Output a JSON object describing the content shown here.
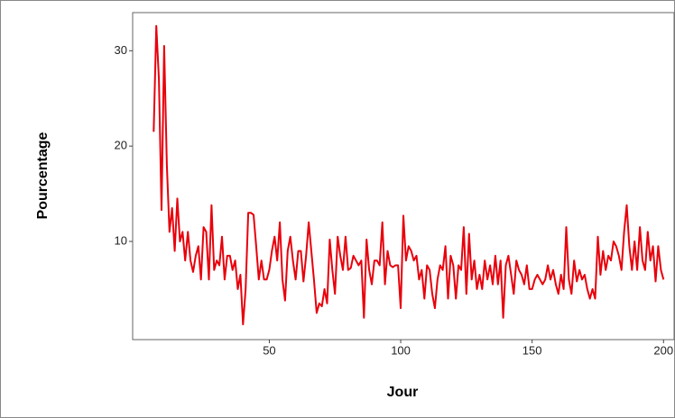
{
  "chart_data": {
    "type": "line",
    "x_label": "Jour",
    "y_label": "Pourcentage",
    "xlim": [
      -2,
      203
    ],
    "ylim": [
      -0.3,
      34
    ],
    "xticks": [
      50,
      100,
      150,
      200
    ],
    "yticks": [
      10,
      20,
      30
    ],
    "x": [
      6,
      7,
      8,
      9,
      10,
      11,
      12,
      13,
      14,
      15,
      16,
      17,
      18,
      19,
      20,
      21,
      22,
      23,
      24,
      25,
      26,
      27,
      28,
      29,
      30,
      31,
      32,
      33,
      34,
      35,
      36,
      37,
      38,
      39,
      40,
      41,
      42,
      43,
      44,
      45,
      46,
      47,
      48,
      49,
      50,
      51,
      52,
      53,
      54,
      55,
      56,
      57,
      58,
      59,
      60,
      61,
      62,
      63,
      64,
      65,
      66,
      67,
      68,
      69,
      70,
      71,
      72,
      73,
      74,
      75,
      76,
      77,
      78,
      79,
      80,
      81,
      82,
      83,
      84,
      85,
      86,
      87,
      88,
      89,
      90,
      91,
      92,
      93,
      94,
      95,
      96,
      97,
      98,
      99,
      100,
      101,
      102,
      103,
      104,
      105,
      106,
      107,
      108,
      109,
      110,
      111,
      112,
      113,
      114,
      115,
      116,
      117,
      118,
      119,
      120,
      121,
      122,
      123,
      124,
      125,
      126,
      127,
      128,
      129,
      130,
      131,
      132,
      133,
      134,
      135,
      136,
      137,
      138,
      139,
      140,
      141,
      142,
      143,
      144,
      145,
      146,
      147,
      148,
      149,
      150,
      151,
      152,
      153,
      154,
      155,
      156,
      157,
      158,
      159,
      160,
      161,
      162,
      163,
      164,
      165,
      166,
      167,
      168,
      169,
      170,
      171,
      172,
      173,
      174,
      175,
      176,
      177,
      178,
      179,
      180,
      181,
      182,
      183,
      184,
      185,
      186,
      187,
      188,
      189,
      190,
      191,
      192,
      193,
      194,
      195,
      196,
      197,
      198,
      199,
      200
    ],
    "series": [
      {
        "color": "#e8000b",
        "values": [
          21.5,
          32.6,
          27,
          13.3,
          30.5,
          18,
          11,
          13.5,
          9,
          14.5,
          10,
          11,
          8,
          11,
          8,
          6.8,
          8.5,
          9.5,
          6,
          11.5,
          11,
          6,
          13.8,
          7,
          8,
          7.5,
          10.5,
          6,
          8.5,
          8.5,
          7,
          8,
          5,
          6.5,
          1.3,
          5,
          13,
          13,
          12.8,
          9.5,
          6,
          8,
          6,
          6,
          7,
          9,
          10.5,
          8,
          12,
          6,
          3.8,
          9,
          10.5,
          8,
          6,
          9,
          9,
          5.8,
          8.5,
          12,
          9,
          6,
          2.5,
          3.5,
          3.2,
          5,
          3.5,
          10.2,
          7,
          4.5,
          10.5,
          8.5,
          7,
          10.5,
          7,
          7.2,
          8.5,
          8,
          7.5,
          8,
          2,
          10.2,
          7,
          5.5,
          8,
          8,
          7.5,
          12,
          5.5,
          9,
          7.5,
          7.3,
          7.5,
          7.5,
          3,
          12.7,
          8,
          9.5,
          9,
          8,
          8.5,
          6,
          7,
          4,
          7.5,
          7,
          4.5,
          3,
          6,
          7.5,
          7,
          9.5,
          4,
          8.5,
          7.5,
          4,
          7.5,
          7,
          11.5,
          4.5,
          10.8,
          6,
          8,
          5,
          6.5,
          5,
          8,
          6,
          7.5,
          5.5,
          8.5,
          5.5,
          8,
          2,
          7.5,
          8.5,
          6.5,
          4.5,
          8,
          7,
          6.5,
          5.5,
          7.5,
          5,
          5,
          6,
          6.5,
          6,
          5.5,
          6,
          7.5,
          6,
          7,
          5.5,
          4.5,
          6.5,
          5,
          11.5,
          6,
          4.5,
          8,
          5.8,
          7,
          6,
          6.5,
          5,
          4,
          5,
          4,
          10.5,
          6.5,
          9,
          7,
          8.5,
          8,
          10,
          9.5,
          8.5,
          7,
          11,
          13.8,
          9.5,
          7,
          10,
          7,
          11.5,
          8,
          7,
          11,
          8,
          9.5,
          5.8,
          9.5,
          7,
          6
        ]
      }
    ]
  }
}
